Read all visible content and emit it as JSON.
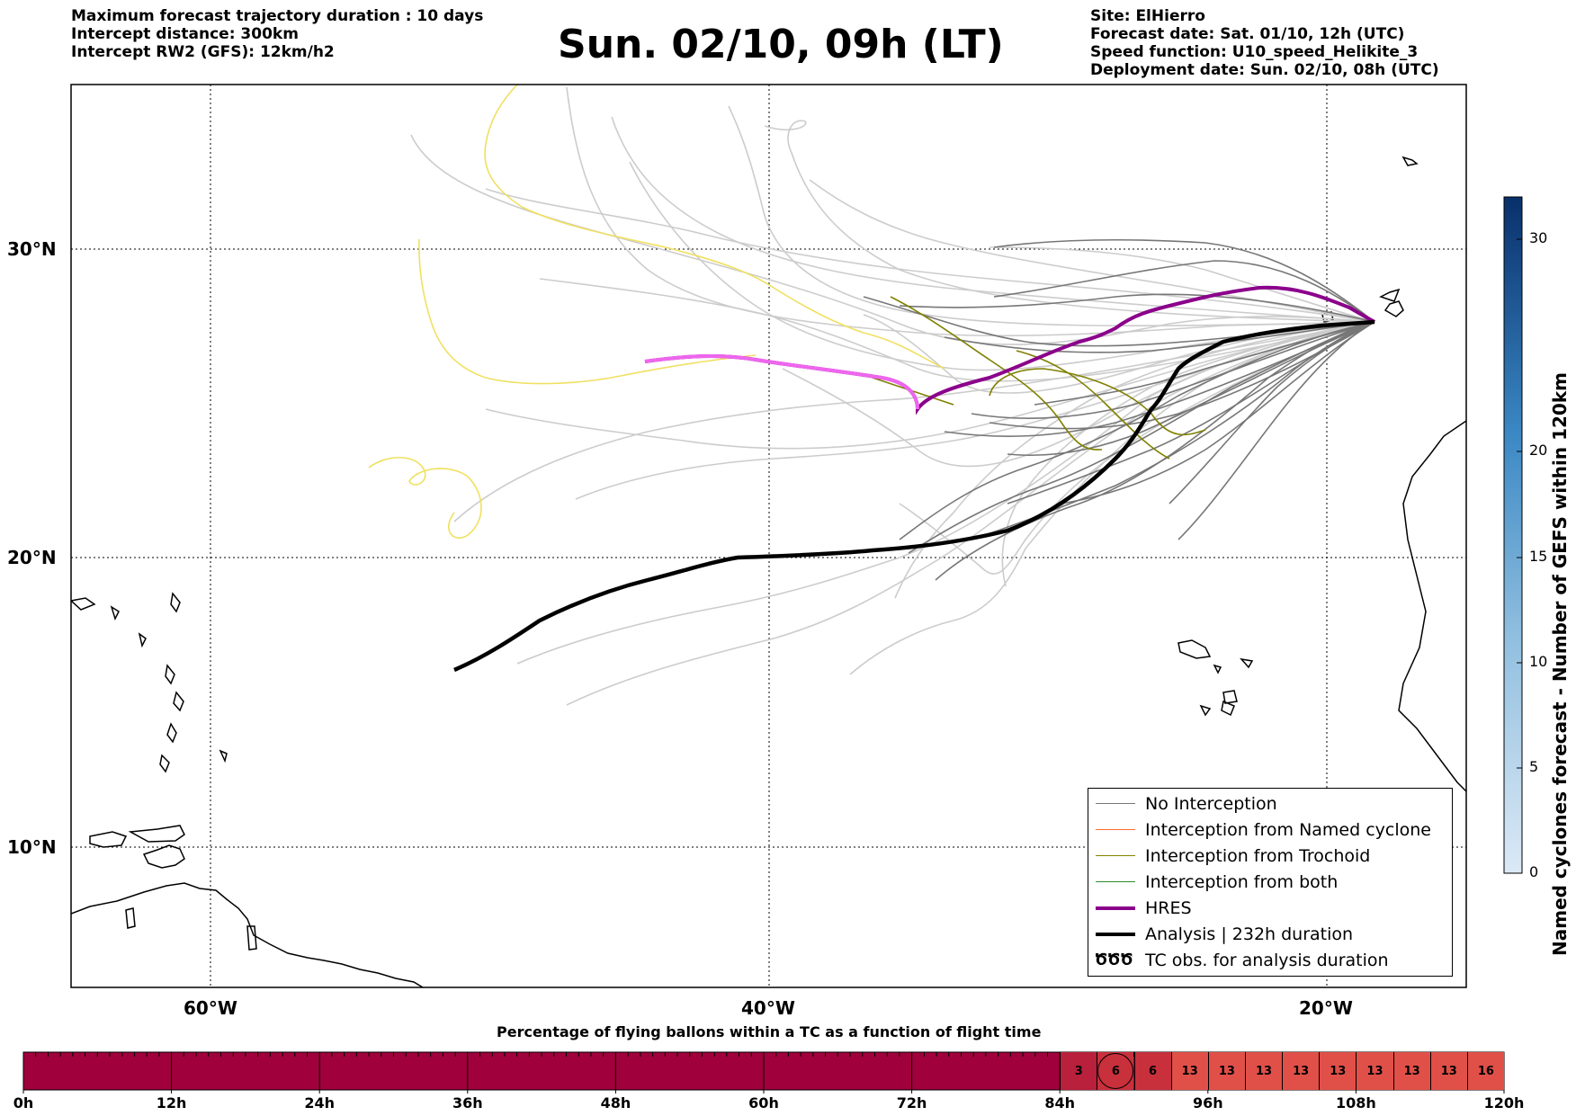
{
  "header": {
    "left_lines": [
      "Maximum forecast trajectory duration : 10 days",
      "Intercept distance: 300km",
      "Intercept RW2 (GFS):  12km/h2"
    ],
    "title": "Sun. 02/10, 09h (LT)",
    "right_lines": [
      "Site: ElHierro",
      "Forecast date: Sat. 01/10, 12h (UTC)",
      "Speed function: U10_speed_Helikite_3",
      "Deployment date: Sun. 02/10, 08h (UTC)"
    ]
  },
  "map": {
    "lon_range": [
      -65,
      -15
    ],
    "lat_range": [
      5,
      34.5
    ],
    "lat_labels": [
      "30°N",
      "20°N",
      "10°N"
    ],
    "lon_labels": [
      "60°W",
      "40°W",
      "20°W"
    ],
    "colors": {
      "no_interception": "#777777",
      "ensemble_light": "#cccccc",
      "named_cyclone": "#ff6a2f",
      "trochoid": "#808000",
      "both": "#2e8b2e",
      "hres": "#8b008b",
      "hres_light": "#ee66ee",
      "analysis": "#000000",
      "yellow_track": "#f0e060"
    }
  },
  "legend": {
    "items": [
      {
        "label": "No Interception",
        "color": "#777777",
        "style": "thin"
      },
      {
        "label": "Interception from Named cyclone",
        "color": "#ff6a2f",
        "style": "thin"
      },
      {
        "label": "Interception from Trochoid",
        "color": "#808000",
        "style": "thin"
      },
      {
        "label": "Interception from both",
        "color": "#2e8b2e",
        "style": "thin"
      },
      {
        "label": "HRES",
        "color": "#8b008b",
        "style": "thick"
      },
      {
        "label": "Analysis | 232h duration",
        "color": "#000000",
        "style": "thick"
      },
      {
        "label": "TC obs. for analysis duration",
        "color": "#000000",
        "style": "symbol"
      }
    ],
    "symbol_glyph": "ԾԾԾ"
  },
  "colorbar": {
    "label": "Named cyclones forecast - Number of GEFS within 120km",
    "ticks": [
      "0",
      "5",
      "10",
      "15",
      "20",
      "30"
    ],
    "range": [
      0,
      32
    ]
  },
  "timeline": {
    "title": "Percentage of flying ballons within a TC as a function of flight time",
    "time_labels": [
      "0h",
      "12h",
      "24h",
      "36h",
      "48h",
      "60h",
      "72h",
      "84h",
      "96h",
      "108h",
      "120h"
    ],
    "base_color": "#a0003c",
    "cells": [
      {
        "label": "3",
        "color": "#b8203c"
      },
      {
        "label": "6",
        "color": "#c8303c",
        "circled": true
      },
      {
        "label": "6",
        "color": "#c8303c"
      },
      {
        "label": "13",
        "color": "#e05048"
      },
      {
        "label": "13",
        "color": "#e05048"
      },
      {
        "label": "13",
        "color": "#e05048"
      },
      {
        "label": "13",
        "color": "#e05048"
      },
      {
        "label": "13",
        "color": "#e05048"
      },
      {
        "label": "13",
        "color": "#e05048"
      },
      {
        "label": "13",
        "color": "#e05048"
      },
      {
        "label": "13",
        "color": "#e05048"
      },
      {
        "label": "16",
        "color": "#e05048"
      }
    ]
  }
}
